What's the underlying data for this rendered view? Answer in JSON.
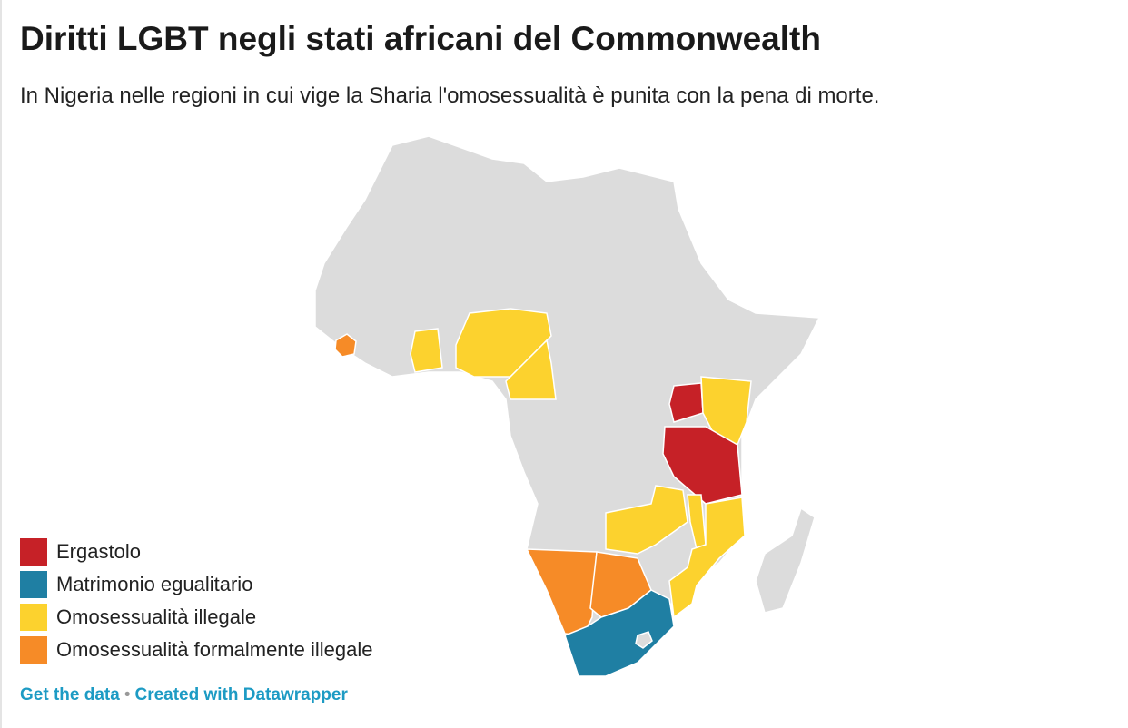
{
  "header": {
    "title": "Diritti LGBT negli stati africani del Commonwealth",
    "subtitle": "In Nigeria nelle regioni in cui vige la Sharia l'omosessualità è punita con la pena di morte."
  },
  "legend": {
    "items": [
      {
        "label": "Ergastolo",
        "color": "#c62127"
      },
      {
        "label": "Matrimonio egualitario",
        "color": "#1f7fa3"
      },
      {
        "label": "Omosessualità illegale",
        "color": "#fcd22e"
      },
      {
        "label": "Omosessualità formalmente illegale",
        "color": "#f68b27"
      }
    ]
  },
  "footer": {
    "links": [
      "Get the data",
      "Created with Datawrapper"
    ],
    "separator": "•"
  }
}
